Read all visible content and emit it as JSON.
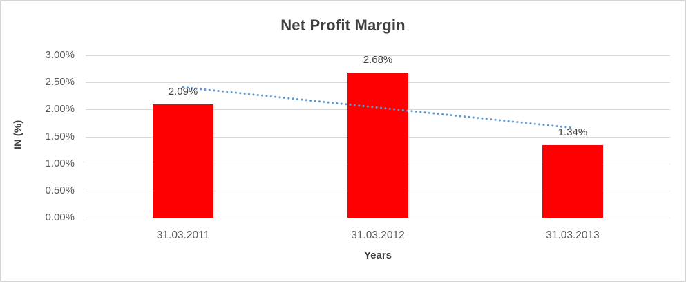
{
  "chart_data": {
    "type": "bar",
    "title": "Net Profit Margin",
    "xlabel": "Years",
    "ylabel": "IN (%)",
    "categories": [
      "31.03.2011",
      "31.03.2012",
      "31.03.2013"
    ],
    "values": [
      2.09,
      2.68,
      1.34
    ],
    "data_labels": [
      "2.09%",
      "2.68%",
      "1.34%"
    ],
    "ylim": [
      0,
      3
    ],
    "yticks": [
      {
        "value": 3.0,
        "label": "3.00%"
      },
      {
        "value": 2.5,
        "label": "2.50%"
      },
      {
        "value": 2.0,
        "label": "2.00%"
      },
      {
        "value": 1.5,
        "label": "1.50%"
      },
      {
        "value": 1.0,
        "label": "1.00%"
      },
      {
        "value": 0.5,
        "label": "0.50%"
      },
      {
        "value": 0.0,
        "label": "0.00%"
      }
    ],
    "grid": true,
    "legend": "none",
    "bar_color": "#FF0000",
    "trendline": {
      "type": "linear",
      "style": "dotted",
      "color": "#5B9BD5",
      "start_value": 2.41,
      "end_value": 1.66
    },
    "colors": {
      "gridline": "#D9D9D9",
      "axis_text": "#595959",
      "title_text": "#404040",
      "frame_border": "#D4D4D4"
    }
  }
}
